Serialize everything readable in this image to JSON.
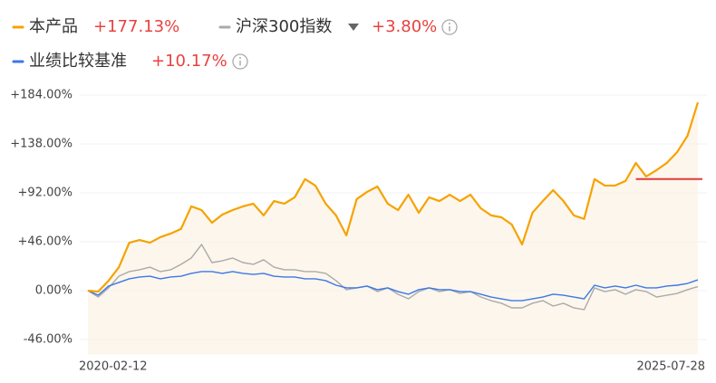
{
  "chart_data": {
    "type": "line",
    "categories": [
      "2020-02-12",
      null,
      null,
      null,
      null,
      null,
      null,
      null,
      null,
      null,
      null,
      null,
      null,
      null,
      null,
      null,
      null,
      null,
      null,
      null,
      null,
      null,
      null,
      null,
      null,
      null,
      null,
      null,
      null,
      null,
      null,
      null,
      null,
      null,
      null,
      null,
      null,
      null,
      null,
      null,
      null,
      null,
      null,
      null,
      null,
      null,
      null,
      null,
      null,
      null,
      null,
      null,
      null,
      null,
      null,
      null,
      null,
      null,
      null,
      "2025-07-28"
    ],
    "series": [
      {
        "name": "本产品",
        "color": "#f5a300",
        "return": "+177.13%",
        "fill": "#fdf6ec",
        "values": [
          0,
          -0.9,
          9.4,
          22.1,
          45.1,
          47.7,
          45.1,
          50.3,
          53.7,
          58.0,
          79.3,
          75.8,
          63.9,
          71.6,
          75.8,
          79.3,
          81.8,
          70.8,
          84.3,
          81.8,
          87.8,
          104.9,
          98.9,
          81.8,
          70.8,
          52.0,
          86.1,
          92.9,
          98.0,
          81.8,
          75.8,
          90.3,
          73.3,
          87.8,
          84.3,
          90.3,
          84.3,
          90.3,
          77.5,
          70.8,
          69.0,
          62.2,
          43.5,
          73.3,
          84.3,
          94.6,
          84.3,
          70.8,
          67.5,
          104.9,
          98.9,
          98.9,
          103.2,
          120.2,
          107.4,
          113.4,
          120.2,
          130.4,
          145.8,
          177.13
        ]
      },
      {
        "name": "沪深300指数",
        "color": "#aaaaaa",
        "return": "+3.80%",
        "values": [
          0,
          -6.0,
          2.6,
          13.6,
          17.9,
          19.6,
          22.1,
          17.9,
          19.6,
          24.7,
          30.7,
          43.5,
          26.4,
          28.1,
          30.7,
          26.4,
          24.7,
          29.0,
          22.1,
          19.6,
          19.6,
          17.9,
          17.9,
          16.2,
          9.4,
          0.9,
          2.6,
          4.3,
          -0.9,
          2.6,
          -3.4,
          -7.7,
          -0.9,
          2.6,
          -0.9,
          0.9,
          -2.6,
          -0.9,
          -6.0,
          -9.4,
          -11.9,
          -16.2,
          -16.2,
          -11.9,
          -9.4,
          -14.5,
          -11.9,
          -16.2,
          -17.9,
          2.6,
          -0.9,
          0.9,
          -3.4,
          0.9,
          -0.9,
          -6.0,
          -4.3,
          -2.6,
          0.9,
          3.8
        ]
      },
      {
        "name": "业绩比较基准",
        "color": "#3b78e7",
        "return": "+10.17%",
        "values": [
          0,
          -4.3,
          4.3,
          7.7,
          11.1,
          12.8,
          13.6,
          11.1,
          12.8,
          13.6,
          16.2,
          17.9,
          17.9,
          16.2,
          17.9,
          16.2,
          15.3,
          16.2,
          13.6,
          12.8,
          12.8,
          11.1,
          11.1,
          9.4,
          5.1,
          2.6,
          2.6,
          4.3,
          0.9,
          2.6,
          -0.9,
          -3.4,
          0.9,
          2.6,
          0.9,
          0.9,
          -0.9,
          -0.9,
          -3.4,
          -6.0,
          -7.7,
          -9.4,
          -9.4,
          -7.7,
          -6.0,
          -3.4,
          -4.3,
          -6.0,
          -7.7,
          5.1,
          2.6,
          4.3,
          2.6,
          5.1,
          2.6,
          2.6,
          4.3,
          5.1,
          6.8,
          10.17
        ]
      }
    ],
    "reference_line": {
      "value": 105,
      "color": "#e03c3c"
    },
    "ylim": [
      -60,
      190
    ],
    "yticks": [
      {
        "value": 184,
        "label": "+184.00%"
      },
      {
        "value": 138,
        "label": "+138.00%"
      },
      {
        "value": 92,
        "label": "+92.00%"
      },
      {
        "value": 46,
        "label": "+46.00%"
      },
      {
        "value": 0,
        "label": "0.00%"
      },
      {
        "value": -46,
        "label": "-46.00%"
      }
    ],
    "grid": true
  }
}
